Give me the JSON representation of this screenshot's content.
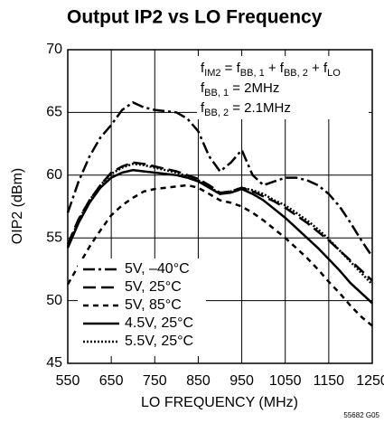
{
  "chart_data": {
    "type": "line",
    "title": "Output IP2 vs LO Frequency",
    "xlabel": "LO FREQUENCY (MHz)",
    "ylabel": "OIP2 (dBm)",
    "footnote": "55682 G05",
    "annotations": [
      [
        "f",
        "IM2",
        " = f",
        "BB, 1",
        " + f",
        "BB, 2",
        " + f",
        "LO"
      ],
      [
        "f",
        "BB, 1",
        " = 2MHz"
      ],
      [
        "f",
        "BB, 2",
        " = 2.1MHz"
      ]
    ],
    "x": [
      550,
      575,
      600,
      625,
      650,
      675,
      700,
      725,
      750,
      775,
      800,
      825,
      850,
      875,
      900,
      925,
      950,
      975,
      1000,
      1025,
      1050,
      1075,
      1100,
      1125,
      1150,
      1175,
      1200,
      1225,
      1250
    ],
    "xlim": [
      550,
      1250
    ],
    "xticks": [
      550,
      650,
      750,
      850,
      950,
      1050,
      1150,
      1250
    ],
    "ylim": [
      45,
      70
    ],
    "yticks": [
      45,
      50,
      55,
      60,
      65,
      70
    ],
    "grid": true,
    "legend": "lower left",
    "series": [
      {
        "name": "5V, –40°C",
        "color": "#000000",
        "style": "dashdot",
        "values": [
          57,
          59.5,
          61.5,
          63,
          64,
          65.2,
          65.8,
          65.4,
          65.2,
          65.1,
          65,
          64.5,
          63.5,
          61.5,
          60.3,
          61,
          62,
          60,
          59.2,
          59.5,
          59.8,
          59.8,
          59.6,
          59.2,
          58.5,
          57.5,
          56.2,
          54.8,
          53.5
        ]
      },
      {
        "name": "5V, 25°C",
        "color": "#000000",
        "style": "dash",
        "values": [
          54.5,
          56.5,
          58,
          59.2,
          60.2,
          60.7,
          61,
          60.9,
          60.7,
          60.5,
          60.3,
          60,
          59.7,
          59.2,
          58.6,
          58.7,
          59,
          58.7,
          58.3,
          57.9,
          57.4,
          56.8,
          56.2,
          55.5,
          54.8,
          54,
          53.2,
          52.4,
          51.6
        ]
      },
      {
        "name": "5V, 85°C",
        "color": "#000000",
        "style": "shortdash",
        "values": [
          51.3,
          52.8,
          54.3,
          55.6,
          56.8,
          57.6,
          58.2,
          58.7,
          58.9,
          59,
          59.1,
          59.2,
          59,
          58.5,
          58,
          57.8,
          57.5,
          57,
          56.4,
          55.7,
          55,
          54.2,
          53.4,
          52.5,
          51.5,
          50.6,
          49.6,
          48.7,
          48
        ]
      },
      {
        "name": "4.5V, 25°C",
        "color": "#000000",
        "style": "solid",
        "values": [
          54.2,
          56.2,
          57.8,
          59,
          59.8,
          60.2,
          60.4,
          60.3,
          60.2,
          60.1,
          60,
          59.8,
          59.5,
          59,
          58.5,
          58.6,
          58.9,
          58.5,
          58,
          57.3,
          56.6,
          55.8,
          55,
          54.2,
          53.3,
          52.4,
          51.4,
          50.6,
          49.8
        ]
      },
      {
        "name": "5.5V, 25°C",
        "color": "#000000",
        "style": "dotted",
        "values": [
          54.3,
          56.4,
          58,
          59.2,
          60.1,
          60.6,
          60.9,
          60.8,
          60.6,
          60.4,
          60.2,
          59.9,
          59.6,
          59.1,
          58.5,
          58.7,
          59,
          58.8,
          58.5,
          58,
          57.6,
          57,
          56.4,
          55.7,
          54.9,
          54,
          53.1,
          52.2,
          51.3
        ]
      }
    ]
  }
}
